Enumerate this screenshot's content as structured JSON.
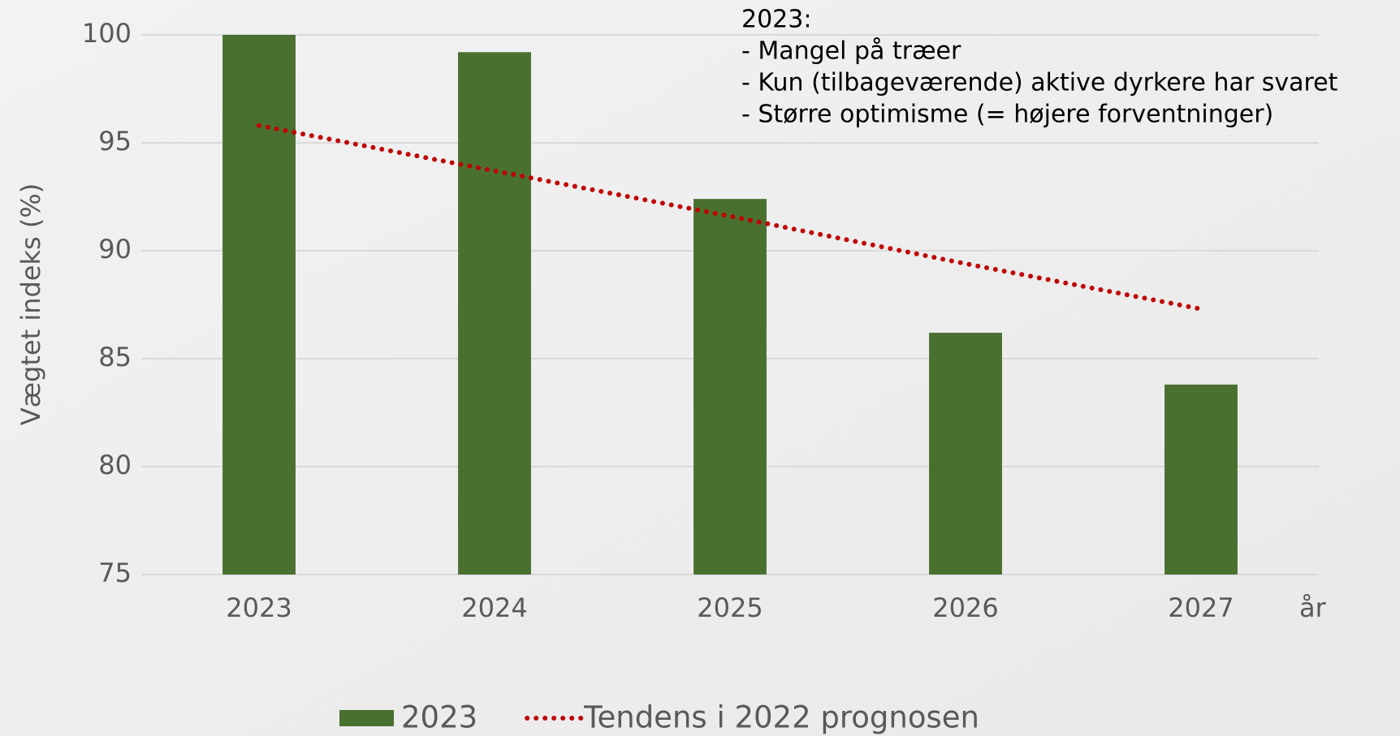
{
  "chart_data": {
    "type": "bar",
    "y_label": "Vægtet indeks (%)",
    "x_label": "år",
    "categories": [
      "2023",
      "2024",
      "2025",
      "2026",
      "2027"
    ],
    "series": [
      {
        "name": "2023",
        "type": "bar",
        "color": "#4a7030",
        "values": [
          100,
          99.2,
          92.4,
          86.2,
          83.8
        ]
      },
      {
        "name": "Tendens i 2022 prognosen",
        "type": "line",
        "style": "dotted",
        "color": "#c00000",
        "values": [
          95.8,
          93.7,
          91.6,
          89.4,
          87.3
        ]
      }
    ],
    "annotation": [
      "2023:",
      "- Mangel på træer",
      "- Kun (tilbageværende) aktive dyrkere har svaret",
      "- Større optimisme (= højere forventninger)"
    ],
    "ylim": [
      75,
      100
    ],
    "yticks": [
      75,
      80,
      85,
      90,
      95,
      100
    ],
    "grid": true,
    "legend": "bottom"
  }
}
